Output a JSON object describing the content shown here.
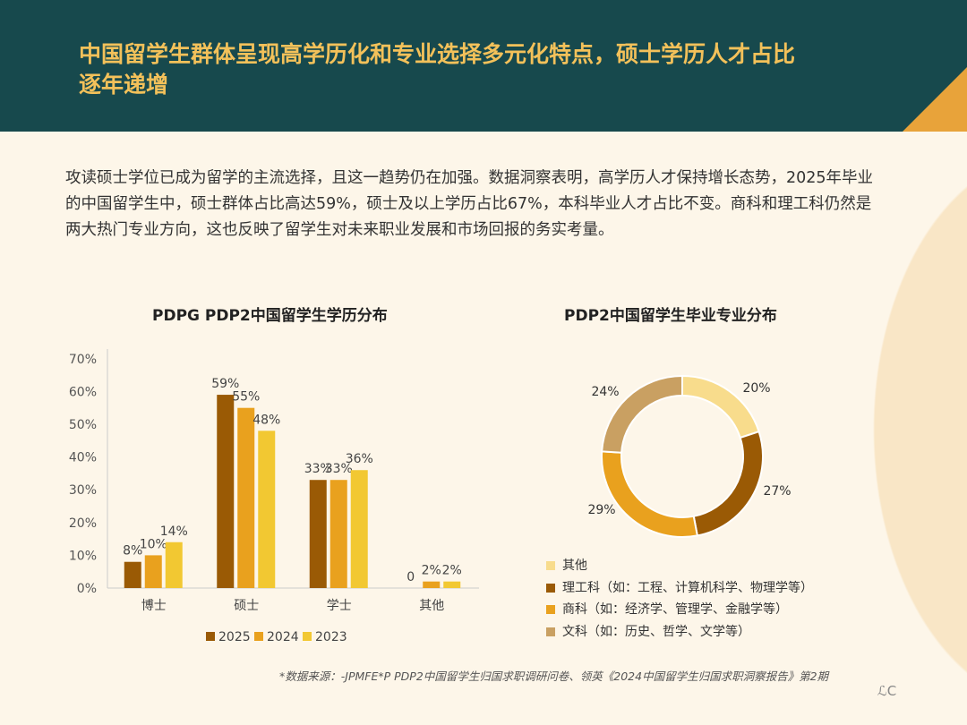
{
  "header": {
    "title": "中国留学生群体呈现高学历化和专业选择多元化特点，硕士学历人才占比逐年递增"
  },
  "intro": "攻读硕士学位已成为留学的主流选择，且这一趋势仍在加强。数据洞察表明，高学历人才保持增长态势，2025年毕业的中国留学生中，硕士群体占比高达59%，硕士及以上学历占比67%，本科毕业人才占比不变。商科和理工科仍然是两大热门专业方向，这也反映了留学生对未来职业发展和市场回报的务实考量。",
  "source": "*数据来源：-JPMFE*P PDP2中国留学生归国求职调研问卷、领英《2024中国留学生归国求职洞察报告》第2期",
  "logo": "ℒC",
  "colors": {
    "header": "#17494d",
    "title": "#f3c15a",
    "accent": "#e8a33a"
  },
  "chart_data": [
    {
      "type": "bar",
      "title": "PDPG PDP2中国留学生学历分布",
      "categories": [
        "博士",
        "硕士",
        "学士",
        "其他"
      ],
      "ylim": [
        0,
        70
      ],
      "yticks": [
        "0%",
        "10%",
        "20%",
        "30%",
        "40%",
        "50%",
        "60%",
        "70%"
      ],
      "grid": false,
      "legend": "bottom",
      "series": [
        {
          "name": "2025",
          "color": "#9a5a05",
          "values": [
            8,
            59,
            33,
            0
          ],
          "labels": [
            "8%",
            "59%",
            "33%",
            "0"
          ]
        },
        {
          "name": "2024",
          "color": "#e9a11e",
          "values": [
            10,
            55,
            33,
            2
          ],
          "labels": [
            "10%",
            "55%",
            "33%",
            "2%"
          ]
        },
        {
          "name": "2023",
          "color": "#f2c832",
          "values": [
            14,
            48,
            36,
            2
          ],
          "labels": [
            "14%",
            "48%",
            "36%",
            "2%"
          ]
        }
      ]
    },
    {
      "type": "pie",
      "title": "PDP2中国留学生毕业专业分布",
      "legend": "bottom",
      "slices": [
        {
          "name": "其他",
          "value": 20,
          "label": "20%",
          "color": "#f8dc8c"
        },
        {
          "name": "理工科（如：工程、计算机科学、物理学等）",
          "value": 27,
          "label": "27%",
          "color": "#9a5a05"
        },
        {
          "name": "商科（如：经济学、管理学、金融学等）",
          "value": 29,
          "label": "29%",
          "color": "#e9a11e"
        },
        {
          "name": "文科（如：历史、哲学、文学等）",
          "value": 24,
          "label": "24%",
          "color": "#c9a062"
        }
      ]
    }
  ]
}
